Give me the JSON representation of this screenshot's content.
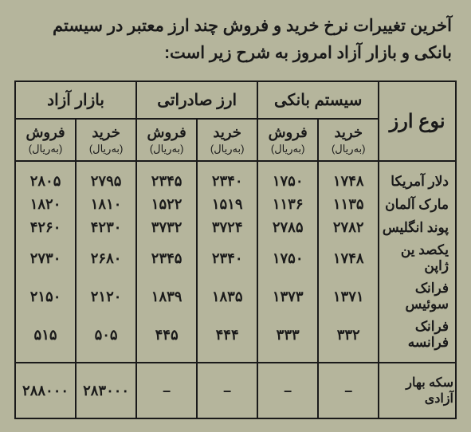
{
  "heading_line1": "آخرین تغییرات نرخ خرید و فروش چند ارز معتبر در سیستم",
  "heading_line2": "بانکی و بازار آزاد امروز به شرح زیر است:",
  "currency_type_label": "نوع ارز",
  "groups": {
    "bank": "سیستم بانکی",
    "export": "ارز صادراتی",
    "free": "بازار آزاد"
  },
  "sub": {
    "buy": "خرید",
    "sell": "فروش",
    "unit": "(به‌ریال)"
  },
  "rows": [
    {
      "label": "دلار آمریکا",
      "bank_buy": "۱۷۴۸",
      "bank_sell": "۱۷۵۰",
      "export_buy": "۲۳۴۰",
      "export_sell": "۲۳۴۵",
      "free_buy": "۲۷۹۵",
      "free_sell": "۲۸۰۵"
    },
    {
      "label": "مارک آلمان",
      "bank_buy": "۱۱۳۵",
      "bank_sell": "۱۱۳۶",
      "export_buy": "۱۵۱۹",
      "export_sell": "۱۵۲۲",
      "free_buy": "۱۸۱۰",
      "free_sell": "۱۸۲۰"
    },
    {
      "label": "پوند انگلیس",
      "bank_buy": "۲۷۸۲",
      "bank_sell": "۲۷۸۵",
      "export_buy": "۳۷۲۴",
      "export_sell": "۳۷۳۲",
      "free_buy": "۴۲۳۰",
      "free_sell": "۴۲۶۰"
    },
    {
      "label": "یکصد ین ژاپن",
      "bank_buy": "۱۷۴۸",
      "bank_sell": "۱۷۵۰",
      "export_buy": "۲۳۴۰",
      "export_sell": "۲۳۴۵",
      "free_buy": "۲۶۸۰",
      "free_sell": "۲۷۳۰"
    },
    {
      "label": "فرانک سوئیس",
      "bank_buy": "۱۳۷۱",
      "bank_sell": "۱۳۷۳",
      "export_buy": "۱۸۳۵",
      "export_sell": "۱۸۳۹",
      "free_buy": "۲۱۲۰",
      "free_sell": "۲۱۵۰"
    },
    {
      "label": "فرانک فرانسه",
      "bank_buy": "۳۳۲",
      "bank_sell": "۳۳۳",
      "export_buy": "۴۴۴",
      "export_sell": "۴۴۵",
      "free_buy": "۵۰۵",
      "free_sell": "۵۱۵"
    }
  ],
  "footer": {
    "label": "سکه بهار آزادی",
    "bank_buy": "–",
    "bank_sell": "–",
    "export_buy": "–",
    "export_sell": "–",
    "free_buy": "۲۸۳۰۰۰",
    "free_sell": "۲۸۸۰۰۰"
  },
  "colors": {
    "page_bg": "#b5b59c",
    "ink": "#1a1a1a"
  }
}
